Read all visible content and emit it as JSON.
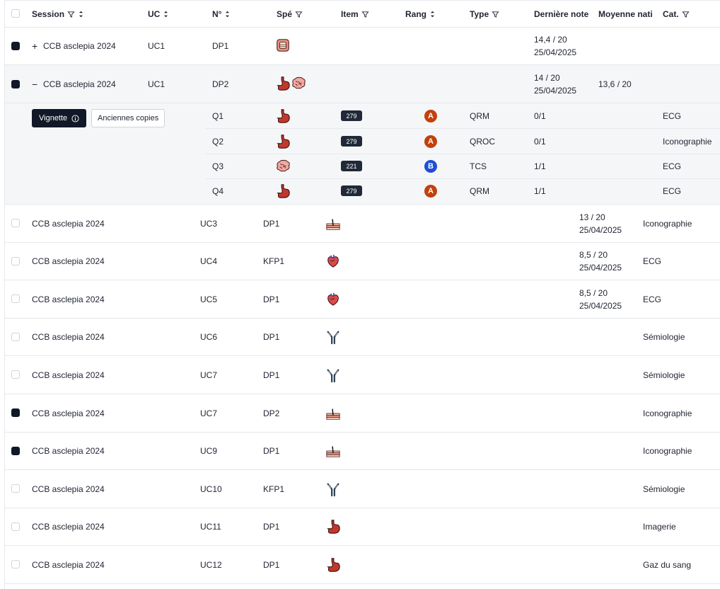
{
  "header": {
    "columns": {
      "session": "Session",
      "uc": "UC",
      "num": "N°",
      "spe": "Spé",
      "item": "Item",
      "rang": "Rang",
      "type": "Type",
      "derniere_note": "Dernière note",
      "moyenne": "Moyenne nati",
      "cat": "Cat."
    }
  },
  "expanded_rows": [
    {
      "session": "CCB asclepia 2024",
      "uc": "UC1",
      "num": "DP1",
      "note": "14,4 / 20",
      "date": "25/04/2025",
      "moyenne": "",
      "expand_symbol": "+",
      "checked": true
    },
    {
      "session": "CCB asclepia 2024",
      "uc": "UC1",
      "num": "DP2",
      "note": "14 / 20",
      "date": "25/04/2025",
      "moyenne": "13,6 / 20",
      "expand_symbol": "−",
      "checked": true
    }
  ],
  "detail": {
    "vignette_label": "Vignette",
    "anciennes_label": "Anciennes copies",
    "questions": [
      {
        "q": "Q1",
        "item": "279",
        "rang": "A",
        "type": "QRM",
        "note": "0/1",
        "cat": "ECG"
      },
      {
        "q": "Q2",
        "item": "279",
        "rang": "A",
        "type": "QROC",
        "note": "0/1",
        "cat": "Iconographie"
      },
      {
        "q": "Q3",
        "item": "221",
        "rang": "B",
        "type": "TCS",
        "note": "1/1",
        "cat": "ECG"
      },
      {
        "q": "Q4",
        "item": "279",
        "rang": "A",
        "type": "QRM",
        "note": "1/1",
        "cat": "ECG"
      }
    ]
  },
  "rows": [
    {
      "session": "CCB asclepia 2024",
      "uc": "UC3",
      "num": "DP1",
      "note": "13 / 20",
      "date": "25/04/2025",
      "cat": "Iconographie",
      "icon": "skin-icon",
      "checked": false
    },
    {
      "session": "CCB asclepia 2024",
      "uc": "UC4",
      "num": "KFP1",
      "note": "8,5 / 20",
      "date": "25/04/2025",
      "cat": "ECG",
      "icon": "heart-icon",
      "checked": false
    },
    {
      "session": "CCB asclepia 2024",
      "uc": "UC5",
      "num": "DP1",
      "note": "8,5 / 20",
      "date": "25/04/2025",
      "cat": "ECG",
      "icon": "heart-icon",
      "checked": false
    },
    {
      "session": "CCB asclepia 2024",
      "uc": "UC6",
      "num": "DP1",
      "note": "",
      "date": "",
      "cat": "Sémiologie",
      "icon": "antibody-icon",
      "checked": false
    },
    {
      "session": "CCB asclepia 2024",
      "uc": "UC7",
      "num": "DP1",
      "note": "",
      "date": "",
      "cat": "Sémiologie",
      "icon": "antibody-icon",
      "checked": false
    },
    {
      "session": "CCB asclepia 2024",
      "uc": "UC7",
      "num": "DP2",
      "note": "",
      "date": "",
      "cat": "Iconographie",
      "icon": "skin-icon",
      "checked": true
    },
    {
      "session": "CCB asclepia 2024",
      "uc": "UC9",
      "num": "DP1",
      "note": "",
      "date": "",
      "cat": "Iconographie",
      "icon": "skin-icon",
      "checked": true
    },
    {
      "session": "CCB asclepia 2024",
      "uc": "UC10",
      "num": "KFP1",
      "note": "",
      "date": "",
      "cat": "Sémiologie",
      "icon": "antibody-icon",
      "checked": false
    },
    {
      "session": "CCB asclepia 2024",
      "uc": "UC11",
      "num": "DP1",
      "note": "",
      "date": "",
      "cat": "Imagerie",
      "icon": "stomach-icon",
      "checked": false
    },
    {
      "session": "CCB asclepia 2024",
      "uc": "UC12",
      "num": "DP1",
      "note": "",
      "date": "",
      "cat": "Gaz du sang",
      "icon": "stomach-icon",
      "checked": false
    }
  ],
  "colors": {
    "rang_a": "#c2410c",
    "rang_b": "#1d4ed8",
    "dark": "#111827"
  }
}
